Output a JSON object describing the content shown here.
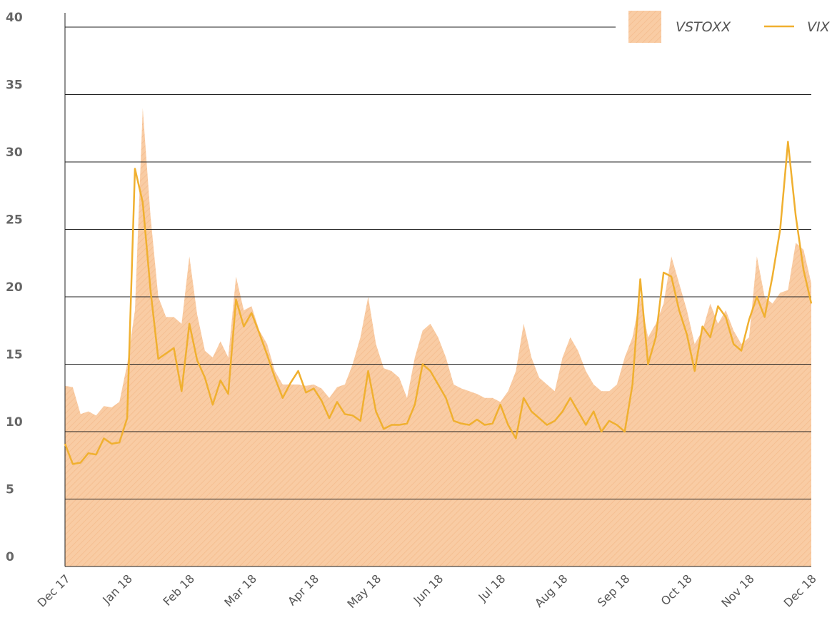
{
  "chart_data": {
    "type": "line",
    "categories": [
      "Dec 17",
      null,
      null,
      null,
      null,
      null,
      null,
      null,
      "Jan 18",
      null,
      null,
      null,
      null,
      null,
      null,
      null,
      "Feb 18",
      null,
      null,
      null,
      null,
      null,
      null,
      null,
      "Mar 18",
      null,
      null,
      null,
      null,
      null,
      null,
      null,
      "Apr 18",
      null,
      null,
      null,
      null,
      null,
      null,
      null,
      "May 18",
      null,
      null,
      null,
      null,
      null,
      null,
      null,
      "Jun 18",
      null,
      null,
      null,
      null,
      null,
      null,
      null,
      "Jul 18",
      null,
      null,
      null,
      null,
      null,
      null,
      null,
      "Aug 18",
      null,
      null,
      null,
      null,
      null,
      null,
      null,
      "Sep 18",
      null,
      null,
      null,
      null,
      null,
      null,
      null,
      "Oct 18",
      null,
      null,
      null,
      null,
      null,
      null,
      null,
      "Nov 18",
      null,
      null,
      null,
      null,
      null,
      null,
      null,
      "Dec 18"
    ],
    "series": [
      {
        "name": "VSTOXX",
        "color": "#f9c9a0",
        "style": "area",
        "values": [
          13.4,
          13.3,
          11.3,
          11.5,
          11.2,
          11.9,
          11.8,
          12.2,
          15,
          19,
          34,
          26,
          20,
          18.5,
          18.5,
          18,
          23,
          18.7,
          16,
          15.5,
          16.7,
          15.5,
          21.5,
          19,
          19.3,
          17.5,
          16.5,
          14.5,
          13.5,
          13.5,
          13.5,
          13.4,
          13.5,
          13.2,
          12.5,
          13.3,
          13.5,
          15,
          17,
          20,
          16.5,
          14.7,
          14.5,
          14,
          12.5,
          15.5,
          17.5,
          18,
          17,
          15.5,
          13.5,
          13.2,
          13,
          12.8,
          12.5,
          12.5,
          12.2,
          13,
          14.5,
          18,
          15.5,
          14,
          13.5,
          13,
          15.5,
          17,
          16,
          14.5,
          13.5,
          13,
          13,
          13.5,
          15.5,
          17,
          20,
          17,
          18,
          19.5,
          23,
          21,
          19,
          16.5,
          17.5,
          19.5,
          18,
          19,
          17.5,
          16.5,
          17,
          23,
          20,
          19.5,
          20.3,
          20.5,
          24,
          23.5,
          21
        ]
      },
      {
        "name": "VIX",
        "color": "#f0b030",
        "style": "line",
        "values": [
          9.1,
          7.6,
          7.7,
          8.4,
          8.3,
          9.5,
          9.1,
          9.2,
          11,
          29.5,
          27,
          20.5,
          15.4,
          15.8,
          16.2,
          13,
          18,
          15.3,
          14,
          12,
          13.8,
          12.8,
          19.8,
          17.8,
          18.8,
          17.3,
          15.7,
          14,
          12.5,
          13.6,
          14.5,
          12.9,
          13.2,
          12.3,
          11,
          12.2,
          11.3,
          11.2,
          10.8,
          14.5,
          11.5,
          10.2,
          10.5,
          10.5,
          10.6,
          12,
          15,
          14.5,
          13.5,
          12.5,
          10.8,
          10.6,
          10.5,
          10.9,
          10.5,
          10.6,
          12,
          10.5,
          9.5,
          12.5,
          11.5,
          11,
          10.5,
          10.8,
          11.5,
          12.5,
          11.5,
          10.5,
          11.5,
          10,
          10.8,
          10.5,
          10,
          13.5,
          21.3,
          15,
          17,
          21.8,
          21.5,
          19,
          17.2,
          14.5,
          17.8,
          17,
          19.3,
          18.5,
          16.5,
          16,
          18.3,
          20,
          18.5,
          21.5,
          25,
          31.5,
          26,
          22,
          19.5
        ]
      }
    ],
    "ylim": [
      0,
      40
    ],
    "yticks": [
      0,
      5,
      10,
      15,
      20,
      25,
      30,
      35,
      40
    ],
    "grid": true,
    "legend": "upper right"
  }
}
